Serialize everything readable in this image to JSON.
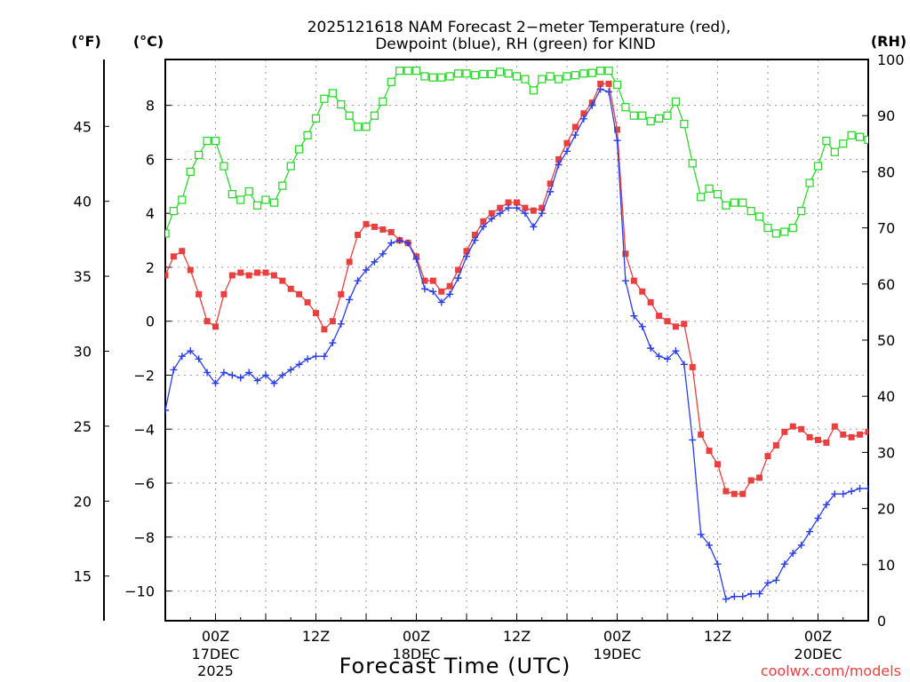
{
  "chart_data": {
    "type": "line",
    "title_line1": "2025121618 NAM Forecast 2−meter Temperature (red),",
    "title_line2": "Dewpoint (blue), RH (green) for KIND",
    "xlabel": "Forecast Time (UTC)",
    "credit": "coolwx.com/models",
    "unit_f": "(°F)",
    "unit_c": "(°C)",
    "unit_rh": "(RH)",
    "x_range_hours": [
      0,
      84
    ],
    "ylim_c": [
      -11.1,
      9.7
    ],
    "ylim_rh": [
      0,
      100
    ],
    "yticks_c": [
      8,
      6,
      4,
      2,
      0,
      -2,
      -4,
      -6,
      -8,
      -10
    ],
    "yticks_c_labels": [
      "8",
      "6",
      "4",
      "2",
      "0",
      "−2",
      "−4",
      "−6",
      "−8",
      "−10"
    ],
    "yticks_f": [
      45,
      40,
      35,
      30,
      25,
      20,
      15
    ],
    "yticks_f_labels": [
      "45",
      "40",
      "35",
      "30",
      "25",
      "20",
      "15"
    ],
    "yticks_rh": [
      100,
      90,
      80,
      70,
      60,
      50,
      40,
      30,
      20,
      10,
      0
    ],
    "yticks_rh_labels": [
      "100",
      "90",
      "80",
      "70",
      "60",
      "50",
      "40",
      "30",
      "20",
      "10",
      "0"
    ],
    "xticks": [
      {
        "hour": 6,
        "label": "00Z",
        "date": "17DEC",
        "year": "2025"
      },
      {
        "hour": 18,
        "label": "12Z",
        "date": "",
        "year": ""
      },
      {
        "hour": 30,
        "label": "00Z",
        "date": "18DEC",
        "year": ""
      },
      {
        "hour": 42,
        "label": "12Z",
        "date": "",
        "year": ""
      },
      {
        "hour": 54,
        "label": "00Z",
        "date": "19DEC",
        "year": ""
      },
      {
        "hour": 66,
        "label": "12Z",
        "date": "",
        "year": ""
      },
      {
        "hour": 78,
        "label": "00Z",
        "date": "20DEC",
        "year": ""
      }
    ],
    "series": [
      {
        "name": "Temperature",
        "units": "C",
        "color": "#e8403f",
        "marker": "filled-square",
        "hours": [
          0,
          1,
          2,
          3,
          4,
          5,
          6,
          7,
          8,
          9,
          10,
          11,
          12,
          13,
          14,
          15,
          16,
          17,
          18,
          19,
          20,
          21,
          22,
          23,
          24,
          25,
          26,
          27,
          28,
          29,
          30,
          31,
          32,
          33,
          34,
          35,
          36,
          37,
          38,
          39,
          40,
          41,
          42,
          43,
          44,
          45,
          46,
          47,
          48,
          49,
          50,
          51,
          52,
          53,
          54,
          55,
          56,
          57,
          58,
          59,
          60,
          61,
          62,
          63,
          64,
          65,
          66,
          67,
          68,
          69,
          70,
          71,
          72,
          73,
          74,
          75,
          76,
          77,
          78,
          79,
          80,
          81,
          82,
          83,
          84
        ],
        "values": [
          1.7,
          2.4,
          2.6,
          1.9,
          1.0,
          0.0,
          -0.2,
          1.0,
          1.7,
          1.8,
          1.7,
          1.8,
          1.8,
          1.7,
          1.5,
          1.2,
          1.0,
          0.7,
          0.3,
          -0.3,
          0.0,
          1.0,
          2.2,
          3.2,
          3.6,
          3.5,
          3.4,
          3.3,
          3.0,
          2.9,
          2.4,
          1.5,
          1.5,
          1.1,
          1.3,
          1.9,
          2.6,
          3.2,
          3.7,
          4.0,
          4.2,
          4.4,
          4.4,
          4.2,
          4.1,
          4.2,
          5.1,
          6.0,
          6.6,
          7.2,
          7.7,
          8.1,
          8.8,
          8.8,
          7.1,
          2.5,
          1.5,
          1.1,
          0.7,
          0.2,
          0.0,
          -0.2,
          -0.1,
          -1.7,
          -4.2,
          -4.8,
          -5.3,
          -6.3,
          -6.4,
          -6.4,
          -5.9,
          -5.8,
          -5.0,
          -4.6,
          -4.1,
          -3.9,
          -4.0,
          -4.3,
          -4.4,
          -4.5,
          -3.9,
          -4.2,
          -4.3,
          -4.2,
          -4.1
        ]
      },
      {
        "name": "Dewpoint",
        "units": "C",
        "color": "#2a3ee8",
        "marker": "plus",
        "hours": [
          0,
          1,
          2,
          3,
          4,
          5,
          6,
          7,
          8,
          9,
          10,
          11,
          12,
          13,
          14,
          15,
          16,
          17,
          18,
          19,
          20,
          21,
          22,
          23,
          24,
          25,
          26,
          27,
          28,
          29,
          30,
          31,
          32,
          33,
          34,
          35,
          36,
          37,
          38,
          39,
          40,
          41,
          42,
          43,
          44,
          45,
          46,
          47,
          48,
          49,
          50,
          51,
          52,
          53,
          54,
          55,
          56,
          57,
          58,
          59,
          60,
          61,
          62,
          63,
          64,
          65,
          66,
          67,
          68,
          69,
          70,
          71,
          72,
          73,
          74,
          75,
          76,
          77,
          78,
          79,
          80,
          81,
          82,
          83,
          84
        ],
        "values": [
          -3.3,
          -1.8,
          -1.3,
          -1.1,
          -1.4,
          -1.9,
          -2.3,
          -1.9,
          -2.0,
          -2.1,
          -1.9,
          -2.2,
          -2.0,
          -2.3,
          -2.0,
          -1.8,
          -1.6,
          -1.4,
          -1.3,
          -1.3,
          -0.8,
          -0.1,
          0.8,
          1.5,
          1.9,
          2.2,
          2.5,
          2.9,
          3.0,
          2.9,
          2.3,
          1.2,
          1.1,
          0.7,
          1.0,
          1.6,
          2.4,
          3.0,
          3.5,
          3.8,
          4.0,
          4.2,
          4.2,
          4.0,
          3.5,
          4.0,
          4.8,
          5.8,
          6.3,
          6.9,
          7.5,
          8.0,
          8.6,
          8.5,
          6.7,
          1.5,
          0.2,
          -0.2,
          -1.0,
          -1.3,
          -1.4,
          -1.1,
          -1.6,
          -4.4,
          -7.9,
          -8.3,
          -9.0,
          -10.3,
          -10.2,
          -10.2,
          -10.1,
          -10.1,
          -9.7,
          -9.6,
          -9.0,
          -8.6,
          -8.3,
          -7.8,
          -7.3,
          -6.8,
          -6.4,
          -6.4,
          -6.3,
          -6.2,
          -6.2
        ]
      },
      {
        "name": "Relative Humidity",
        "units": "%",
        "color": "#2fd82f",
        "marker": "open-square",
        "hours": [
          0,
          1,
          2,
          3,
          4,
          5,
          6,
          7,
          8,
          9,
          10,
          11,
          12,
          13,
          14,
          15,
          16,
          17,
          18,
          19,
          20,
          21,
          22,
          23,
          24,
          25,
          26,
          27,
          28,
          29,
          30,
          31,
          32,
          33,
          34,
          35,
          36,
          37,
          38,
          39,
          40,
          41,
          42,
          43,
          44,
          45,
          46,
          47,
          48,
          49,
          50,
          51,
          52,
          53,
          54,
          55,
          56,
          57,
          58,
          59,
          60,
          61,
          62,
          63,
          64,
          65,
          66,
          67,
          68,
          69,
          70,
          71,
          72,
          73,
          74,
          75,
          76,
          77,
          78,
          79,
          80,
          81,
          82,
          83,
          84
        ],
        "values": [
          69,
          73,
          75,
          80,
          83,
          85.5,
          85.5,
          81,
          76,
          75,
          76.5,
          74,
          75,
          74.5,
          77.5,
          81,
          84,
          86.5,
          89.5,
          93,
          94,
          92,
          90,
          88,
          88,
          90,
          92.5,
          96,
          98,
          98,
          98,
          97,
          96.8,
          96.8,
          97,
          97.5,
          97.5,
          97.2,
          97.4,
          97.4,
          97.8,
          97.5,
          97,
          96.5,
          94.5,
          96.5,
          97,
          96.5,
          97,
          97.2,
          97.5,
          97.6,
          98,
          98,
          95.5,
          91.5,
          90,
          90,
          89,
          89.5,
          90,
          92.5,
          88.5,
          81.5,
          75.5,
          77,
          76,
          74,
          74.5,
          74.5,
          73,
          72,
          70,
          69,
          69.3,
          70,
          73,
          78,
          81,
          85.5,
          83.5,
          85,
          86.5,
          86.2,
          85.7
        ]
      }
    ]
  }
}
